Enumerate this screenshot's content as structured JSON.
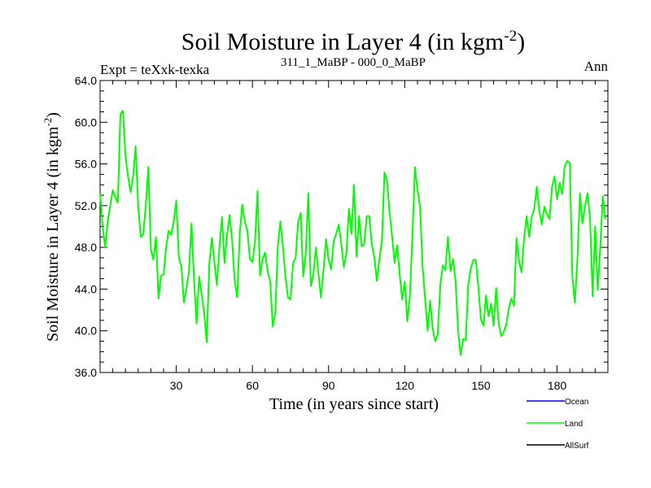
{
  "chart_data": {
    "type": "line",
    "title": "Soil Moisture in Layer 4 (in kgm",
    "title_sup": "-2",
    "title_close": ")",
    "subtitle_left": "Expt = teXxk-texka",
    "subtitle_center": "311_1_MaBP - 000_0_MaBP",
    "subtitle_right": "Ann",
    "xlabel": "Time (in years since start)",
    "ylabel": "Soil Moisture in Layer 4 (in kgm",
    "ylabel_sup": "-2",
    "ylabel_close": ")",
    "xlim": [
      0,
      200
    ],
    "ylim": [
      36,
      64
    ],
    "xticks": [
      30,
      60,
      90,
      120,
      150,
      180
    ],
    "xtick_labels": [
      "30",
      "60",
      "90",
      "120",
      "150",
      "180"
    ],
    "yticks": [
      36,
      40,
      44,
      48,
      52,
      56,
      60,
      64
    ],
    "ytick_labels": [
      "36.0",
      "40.0",
      "44.0",
      "48.0",
      "52.0",
      "56.0",
      "60.0",
      "64.0"
    ],
    "legend": [
      {
        "name": "Ocean",
        "color": "#0000ff"
      },
      {
        "name": "Land",
        "color": "#00ff00"
      },
      {
        "name": "AllSurf",
        "color": "#000000"
      }
    ],
    "series": [
      {
        "name": "Land",
        "color": "#00ff00",
        "x": [
          0,
          1,
          2,
          3,
          4,
          5,
          6,
          7,
          8,
          9,
          10,
          11,
          12,
          13,
          14,
          15,
          16,
          17,
          18,
          19,
          20,
          21,
          22,
          23,
          24,
          25,
          26,
          27,
          28,
          29,
          30,
          31,
          32,
          33,
          34,
          35,
          36,
          37,
          38,
          39,
          40,
          41,
          42,
          43,
          44,
          45,
          46,
          47,
          48,
          49,
          50,
          51,
          52,
          53,
          54,
          55,
          56,
          57,
          58,
          59,
          60,
          61,
          62,
          63,
          64,
          65,
          66,
          67,
          68,
          69,
          70,
          71,
          72,
          73,
          74,
          75,
          76,
          77,
          78,
          79,
          80,
          81,
          82,
          83,
          84,
          85,
          86,
          87,
          88,
          89,
          90,
          91,
          92,
          93,
          94,
          95,
          96,
          97,
          98,
          99,
          100,
          101,
          102,
          103,
          104,
          105,
          106,
          107,
          108,
          109,
          110,
          111,
          112,
          113,
          114,
          115,
          116,
          117,
          118,
          119,
          120,
          121,
          122,
          123,
          124,
          125,
          126,
          127,
          128,
          129,
          130,
          131,
          132,
          133,
          134,
          135,
          136,
          137,
          138,
          139,
          140,
          141,
          142,
          143,
          144,
          145,
          146,
          147,
          148,
          149,
          150,
          151,
          152,
          153,
          154,
          155,
          156,
          157,
          158,
          159,
          160,
          161,
          162,
          163,
          164,
          165,
          166,
          167,
          168,
          169,
          170,
          171,
          172,
          173,
          174,
          175,
          176,
          177,
          178,
          179,
          180,
          181,
          182,
          183,
          184,
          185,
          186,
          187,
          188,
          189,
          190,
          191,
          192,
          193,
          194,
          195,
          196,
          197,
          198,
          199
        ],
        "values": [
          53.2,
          50.0,
          48.0,
          50.5,
          52.0,
          53.5,
          52.8,
          52.3,
          60.8,
          61.1,
          56.7,
          54.8,
          53.3,
          54.8,
          57.7,
          52.0,
          49.0,
          49.3,
          52.0,
          55.7,
          47.8,
          46.8,
          49.0,
          43.1,
          45.3,
          45.4,
          48.0,
          49.6,
          49.2,
          50.5,
          52.5,
          47.1,
          46.2,
          42.7,
          44.1,
          45.7,
          50.3,
          44.9,
          40.7,
          45.2,
          43.5,
          41.7,
          38.9,
          46.4,
          48.9,
          46.6,
          44.4,
          48.0,
          50.9,
          46.5,
          49.2,
          51.1,
          48.7,
          44.8,
          43.2,
          49.3,
          52.1,
          50.5,
          49.6,
          46.9,
          46.6,
          48.5,
          53.4,
          45.3,
          46.9,
          47.5,
          45.7,
          44.7,
          40.4,
          41.7,
          48.1,
          50.5,
          48.1,
          45.2,
          43.2,
          43.0,
          46.5,
          47.0,
          50.4,
          51.3,
          45.2,
          47.4,
          53.2,
          44.3,
          45.4,
          48.0,
          45.5,
          43.2,
          45.9,
          48.8,
          46.8,
          45.9,
          48.6,
          49.3,
          50.2,
          48.3,
          46.1,
          47.4,
          51.7,
          49.3,
          54.0,
          47.1,
          51.0,
          48.1,
          48.3,
          51.0,
          51.0,
          48.3,
          47.1,
          44.8,
          46.9,
          48.6,
          55.2,
          54.4,
          51.4,
          49.1,
          46.5,
          48.2,
          45.4,
          43.0,
          44.7,
          40.9,
          43.3,
          49.0,
          55.7,
          53.5,
          52.0,
          46.2,
          43.1,
          40.0,
          42.9,
          40.2,
          39.0,
          39.7,
          44.4,
          46.3,
          45.8,
          49.0,
          45.7,
          46.9,
          44.8,
          40.0,
          37.7,
          39.2,
          39.1,
          44.4,
          46.0,
          46.8,
          46.8,
          44.1,
          41.1,
          40.5,
          43.4,
          41.4,
          42.6,
          40.5,
          44.1,
          40.7,
          39.5,
          39.9,
          40.6,
          42.2,
          43.1,
          42.4,
          48.9,
          46.7,
          45.6,
          48.9,
          51.0,
          49.0,
          50.9,
          51.7,
          53.8,
          51.5,
          50.2,
          51.9,
          51.2,
          50.7,
          53.8,
          54.8,
          52.6,
          54.2,
          53.1,
          55.8,
          56.3,
          56.1,
          45.2,
          42.7,
          46.9,
          53.2,
          50.3,
          52.0,
          53.2,
          50.6,
          43.3,
          50.0,
          43.9,
          48.0,
          52.9,
          50.7
        ]
      },
      {
        "name": "Ocean",
        "color": "#0000ff",
        "x": [],
        "values": []
      },
      {
        "name": "AllSurf",
        "color": "#000000",
        "x": [],
        "values": []
      }
    ]
  }
}
